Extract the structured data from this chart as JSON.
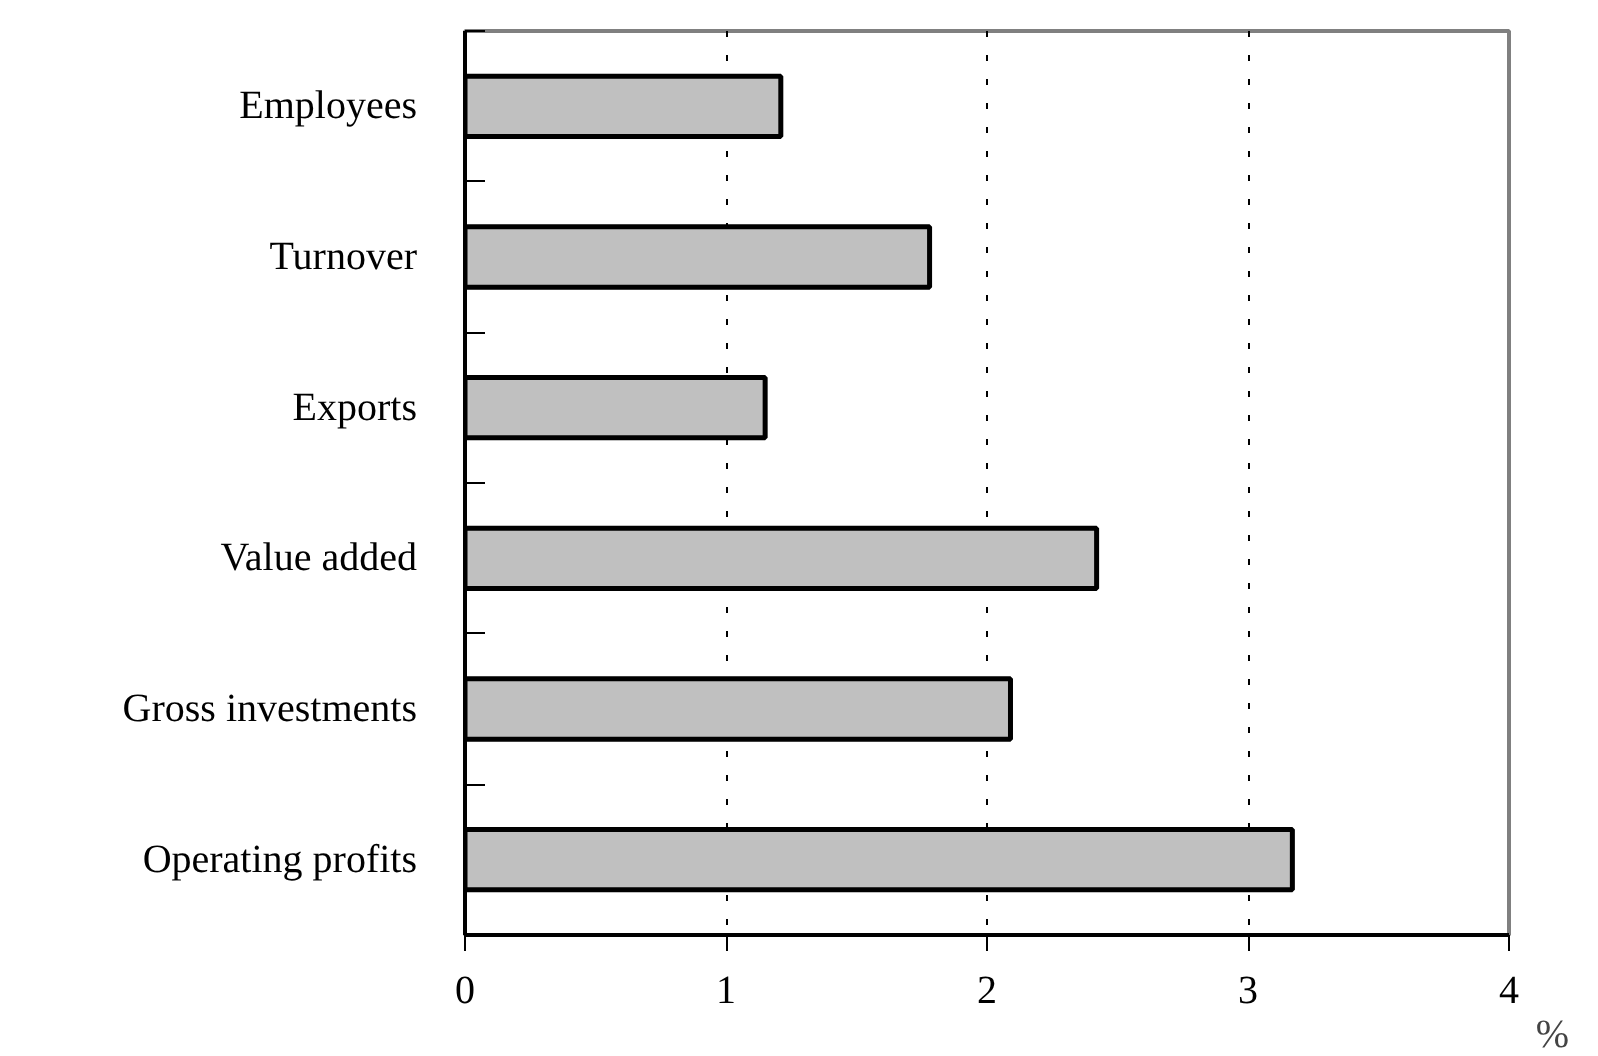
{
  "chart_data": {
    "type": "bar",
    "orientation": "horizontal",
    "xlabel": "%",
    "categories": [
      "Employees",
      "Turnover",
      "Exports",
      "Value added",
      "Gross investments",
      "Operating profits"
    ],
    "values": [
      1.21,
      1.78,
      1.15,
      2.42,
      2.09,
      3.17
    ],
    "color": "#c0c0c0",
    "xlim": [
      0,
      4
    ],
    "xticks": [
      0,
      1,
      2,
      3,
      4
    ],
    "grid": "x"
  }
}
